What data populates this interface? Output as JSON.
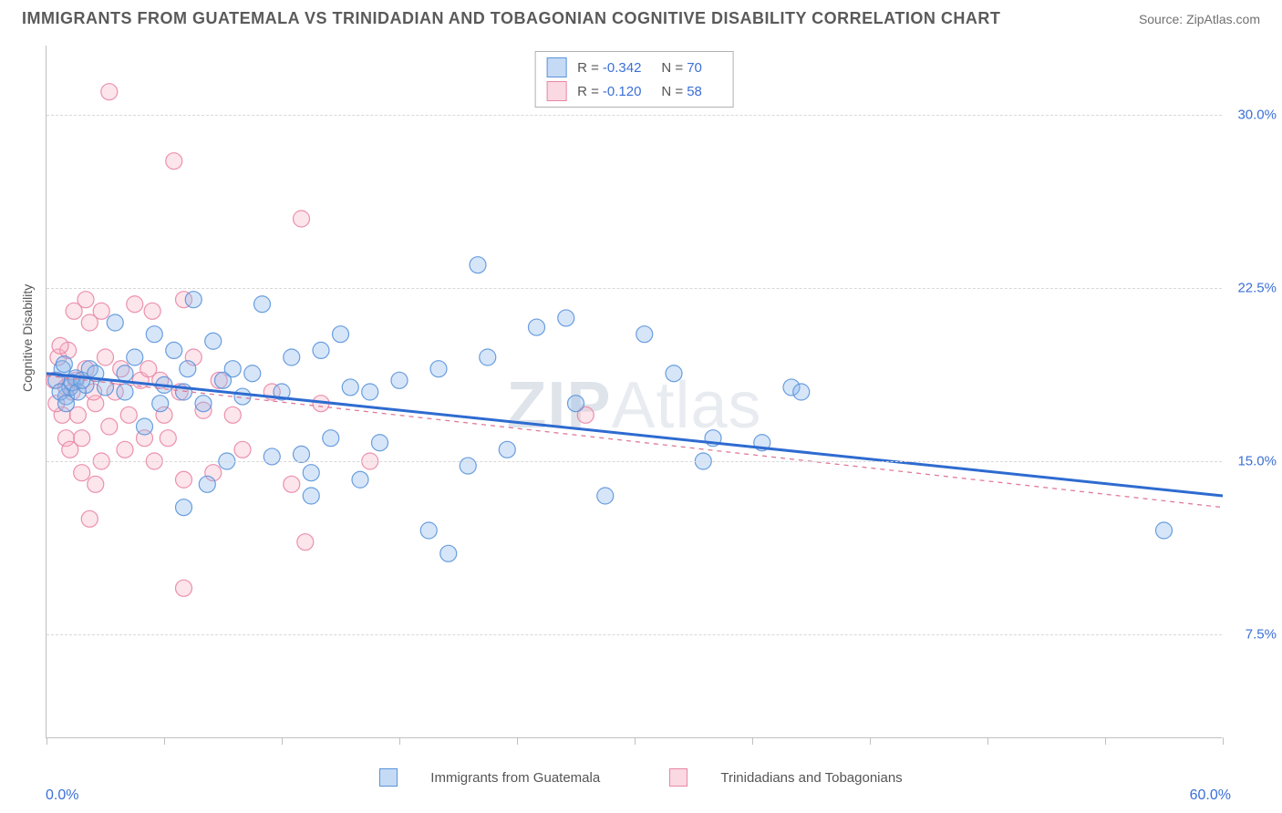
{
  "header": {
    "title": "IMMIGRANTS FROM GUATEMALA VS TRINIDADIAN AND TOBAGONIAN COGNITIVE DISABILITY CORRELATION CHART",
    "source": "Source: ZipAtlas.com"
  },
  "chart": {
    "type": "scatter",
    "ylabel": "Cognitive Disability",
    "xlim": [
      0,
      60
    ],
    "ylim": [
      3,
      33
    ],
    "ytick_values": [
      7.5,
      15.0,
      22.5,
      30.0
    ],
    "ytick_labels": [
      "7.5%",
      "15.0%",
      "22.5%",
      "30.0%"
    ],
    "xtick_values": [
      0,
      6,
      12,
      18,
      24,
      30,
      36,
      42,
      48,
      54,
      60
    ],
    "xaxis_start_label": "0.0%",
    "xaxis_end_label": "60.0%",
    "background_color": "#ffffff",
    "grid_color": "#d8d8d8",
    "axis_color": "#c0c0c0",
    "marker_radius": 9,
    "marker_fill_opacity": 0.35,
    "marker_stroke_opacity": 0.9,
    "marker_stroke_width": 1.2,
    "watermark": "ZIPAtlas"
  },
  "series": {
    "blue": {
      "label": "Immigrants from Guatemala",
      "fill": "#8ab6ec",
      "stroke": "#5b94db",
      "R": "-0.342",
      "N": "70",
      "trend": {
        "x1": 0,
        "y1": 18.8,
        "x2": 60,
        "y2": 13.5,
        "color": "#2e6bd0",
        "width": 3
      },
      "points": [
        [
          0.5,
          18.5
        ],
        [
          0.8,
          19.0
        ],
        [
          1.0,
          17.8
        ],
        [
          1.2,
          18.2
        ],
        [
          1.5,
          18.6
        ],
        [
          0.7,
          18.0
        ],
        [
          1.0,
          17.5
        ],
        [
          0.9,
          19.2
        ],
        [
          1.3,
          18.4
        ],
        [
          1.6,
          18.0
        ],
        [
          2.0,
          18.3
        ],
        [
          2.2,
          19.0
        ],
        [
          1.8,
          18.5
        ],
        [
          2.5,
          18.8
        ],
        [
          3.0,
          18.2
        ],
        [
          3.5,
          21.0
        ],
        [
          4.0,
          18.0
        ],
        [
          4.5,
          19.5
        ],
        [
          4.0,
          18.8
        ],
        [
          5.0,
          16.5
        ],
        [
          5.5,
          20.5
        ],
        [
          5.8,
          17.5
        ],
        [
          6.0,
          18.3
        ],
        [
          6.5,
          19.8
        ],
        [
          7.0,
          18.0
        ],
        [
          7.2,
          19.0
        ],
        [
          7.5,
          22.0
        ],
        [
          8.0,
          17.5
        ],
        [
          8.5,
          20.2
        ],
        [
          8.2,
          14.0
        ],
        [
          9.0,
          18.5
        ],
        [
          9.2,
          15.0
        ],
        [
          9.5,
          19.0
        ],
        [
          10.0,
          17.8
        ],
        [
          10.5,
          18.8
        ],
        [
          11.0,
          21.8
        ],
        [
          7.0,
          13.0
        ],
        [
          11.5,
          15.2
        ],
        [
          12.0,
          18.0
        ],
        [
          12.5,
          19.5
        ],
        [
          13.0,
          15.3
        ],
        [
          13.5,
          14.5
        ],
        [
          14.0,
          19.8
        ],
        [
          14.5,
          16.0
        ],
        [
          15.0,
          20.5
        ],
        [
          15.5,
          18.2
        ],
        [
          13.5,
          13.5
        ],
        [
          16.0,
          14.2
        ],
        [
          16.5,
          18.0
        ],
        [
          17.0,
          15.8
        ],
        [
          18.0,
          18.5
        ],
        [
          19.5,
          12.0
        ],
        [
          20.0,
          19.0
        ],
        [
          20.5,
          11.0
        ],
        [
          21.5,
          14.8
        ],
        [
          22.0,
          23.5
        ],
        [
          22.5,
          19.5
        ],
        [
          23.5,
          15.5
        ],
        [
          25.0,
          20.8
        ],
        [
          26.5,
          21.2
        ],
        [
          27.0,
          17.5
        ],
        [
          28.5,
          13.5
        ],
        [
          30.5,
          20.5
        ],
        [
          32.0,
          18.8
        ],
        [
          33.5,
          15.0
        ],
        [
          36.5,
          15.8
        ],
        [
          38.0,
          18.2
        ],
        [
          57.0,
          12.0
        ],
        [
          38.5,
          18.0
        ],
        [
          34.0,
          16.0
        ]
      ]
    },
    "pink": {
      "label": "Trinidadians and Tobagonians",
      "fill": "#f6b4c6",
      "stroke": "#e986a5",
      "R": "-0.120",
      "N": "58",
      "trend": {
        "x1": 0,
        "y1": 18.7,
        "x2": 60,
        "y2": 13.0,
        "color": "#e07a98",
        "width": 1.3,
        "dash": "5,5"
      },
      "points": [
        [
          0.4,
          18.5
        ],
        [
          0.6,
          19.5
        ],
        [
          0.8,
          17.0
        ],
        [
          1.0,
          18.2
        ],
        [
          1.1,
          19.8
        ],
        [
          1.3,
          18.0
        ],
        [
          1.0,
          16.0
        ],
        [
          0.5,
          17.5
        ],
        [
          0.7,
          20.0
        ],
        [
          1.2,
          15.5
        ],
        [
          1.5,
          18.5
        ],
        [
          1.4,
          21.5
        ],
        [
          1.6,
          17.0
        ],
        [
          1.8,
          14.5
        ],
        [
          2.0,
          19.0
        ],
        [
          2.2,
          21.0
        ],
        [
          1.8,
          16.0
        ],
        [
          2.5,
          17.5
        ],
        [
          2.0,
          22.0
        ],
        [
          2.4,
          18.0
        ],
        [
          2.8,
          15.0
        ],
        [
          3.0,
          19.5
        ],
        [
          2.8,
          21.5
        ],
        [
          3.2,
          16.5
        ],
        [
          3.5,
          18.0
        ],
        [
          2.2,
          12.5
        ],
        [
          3.2,
          31.0
        ],
        [
          3.8,
          19.0
        ],
        [
          4.0,
          15.5
        ],
        [
          4.2,
          17.0
        ],
        [
          4.5,
          21.8
        ],
        [
          4.8,
          18.5
        ],
        [
          2.5,
          14.0
        ],
        [
          5.0,
          16.0
        ],
        [
          5.2,
          19.0
        ],
        [
          5.5,
          15.0
        ],
        [
          5.8,
          18.5
        ],
        [
          6.0,
          17.0
        ],
        [
          5.4,
          21.5
        ],
        [
          6.2,
          16.0
        ],
        [
          6.5,
          28.0
        ],
        [
          6.8,
          18.0
        ],
        [
          7.0,
          14.2
        ],
        [
          7.5,
          19.5
        ],
        [
          7.0,
          9.5
        ],
        [
          8.0,
          17.2
        ],
        [
          8.5,
          14.5
        ],
        [
          8.8,
          18.5
        ],
        [
          7.0,
          22.0
        ],
        [
          9.5,
          17.0
        ],
        [
          10.0,
          15.5
        ],
        [
          11.5,
          18.0
        ],
        [
          12.5,
          14.0
        ],
        [
          13.0,
          25.5
        ],
        [
          13.2,
          11.5
        ],
        [
          14.0,
          17.5
        ],
        [
          16.5,
          15.0
        ],
        [
          27.5,
          17.0
        ]
      ]
    }
  }
}
